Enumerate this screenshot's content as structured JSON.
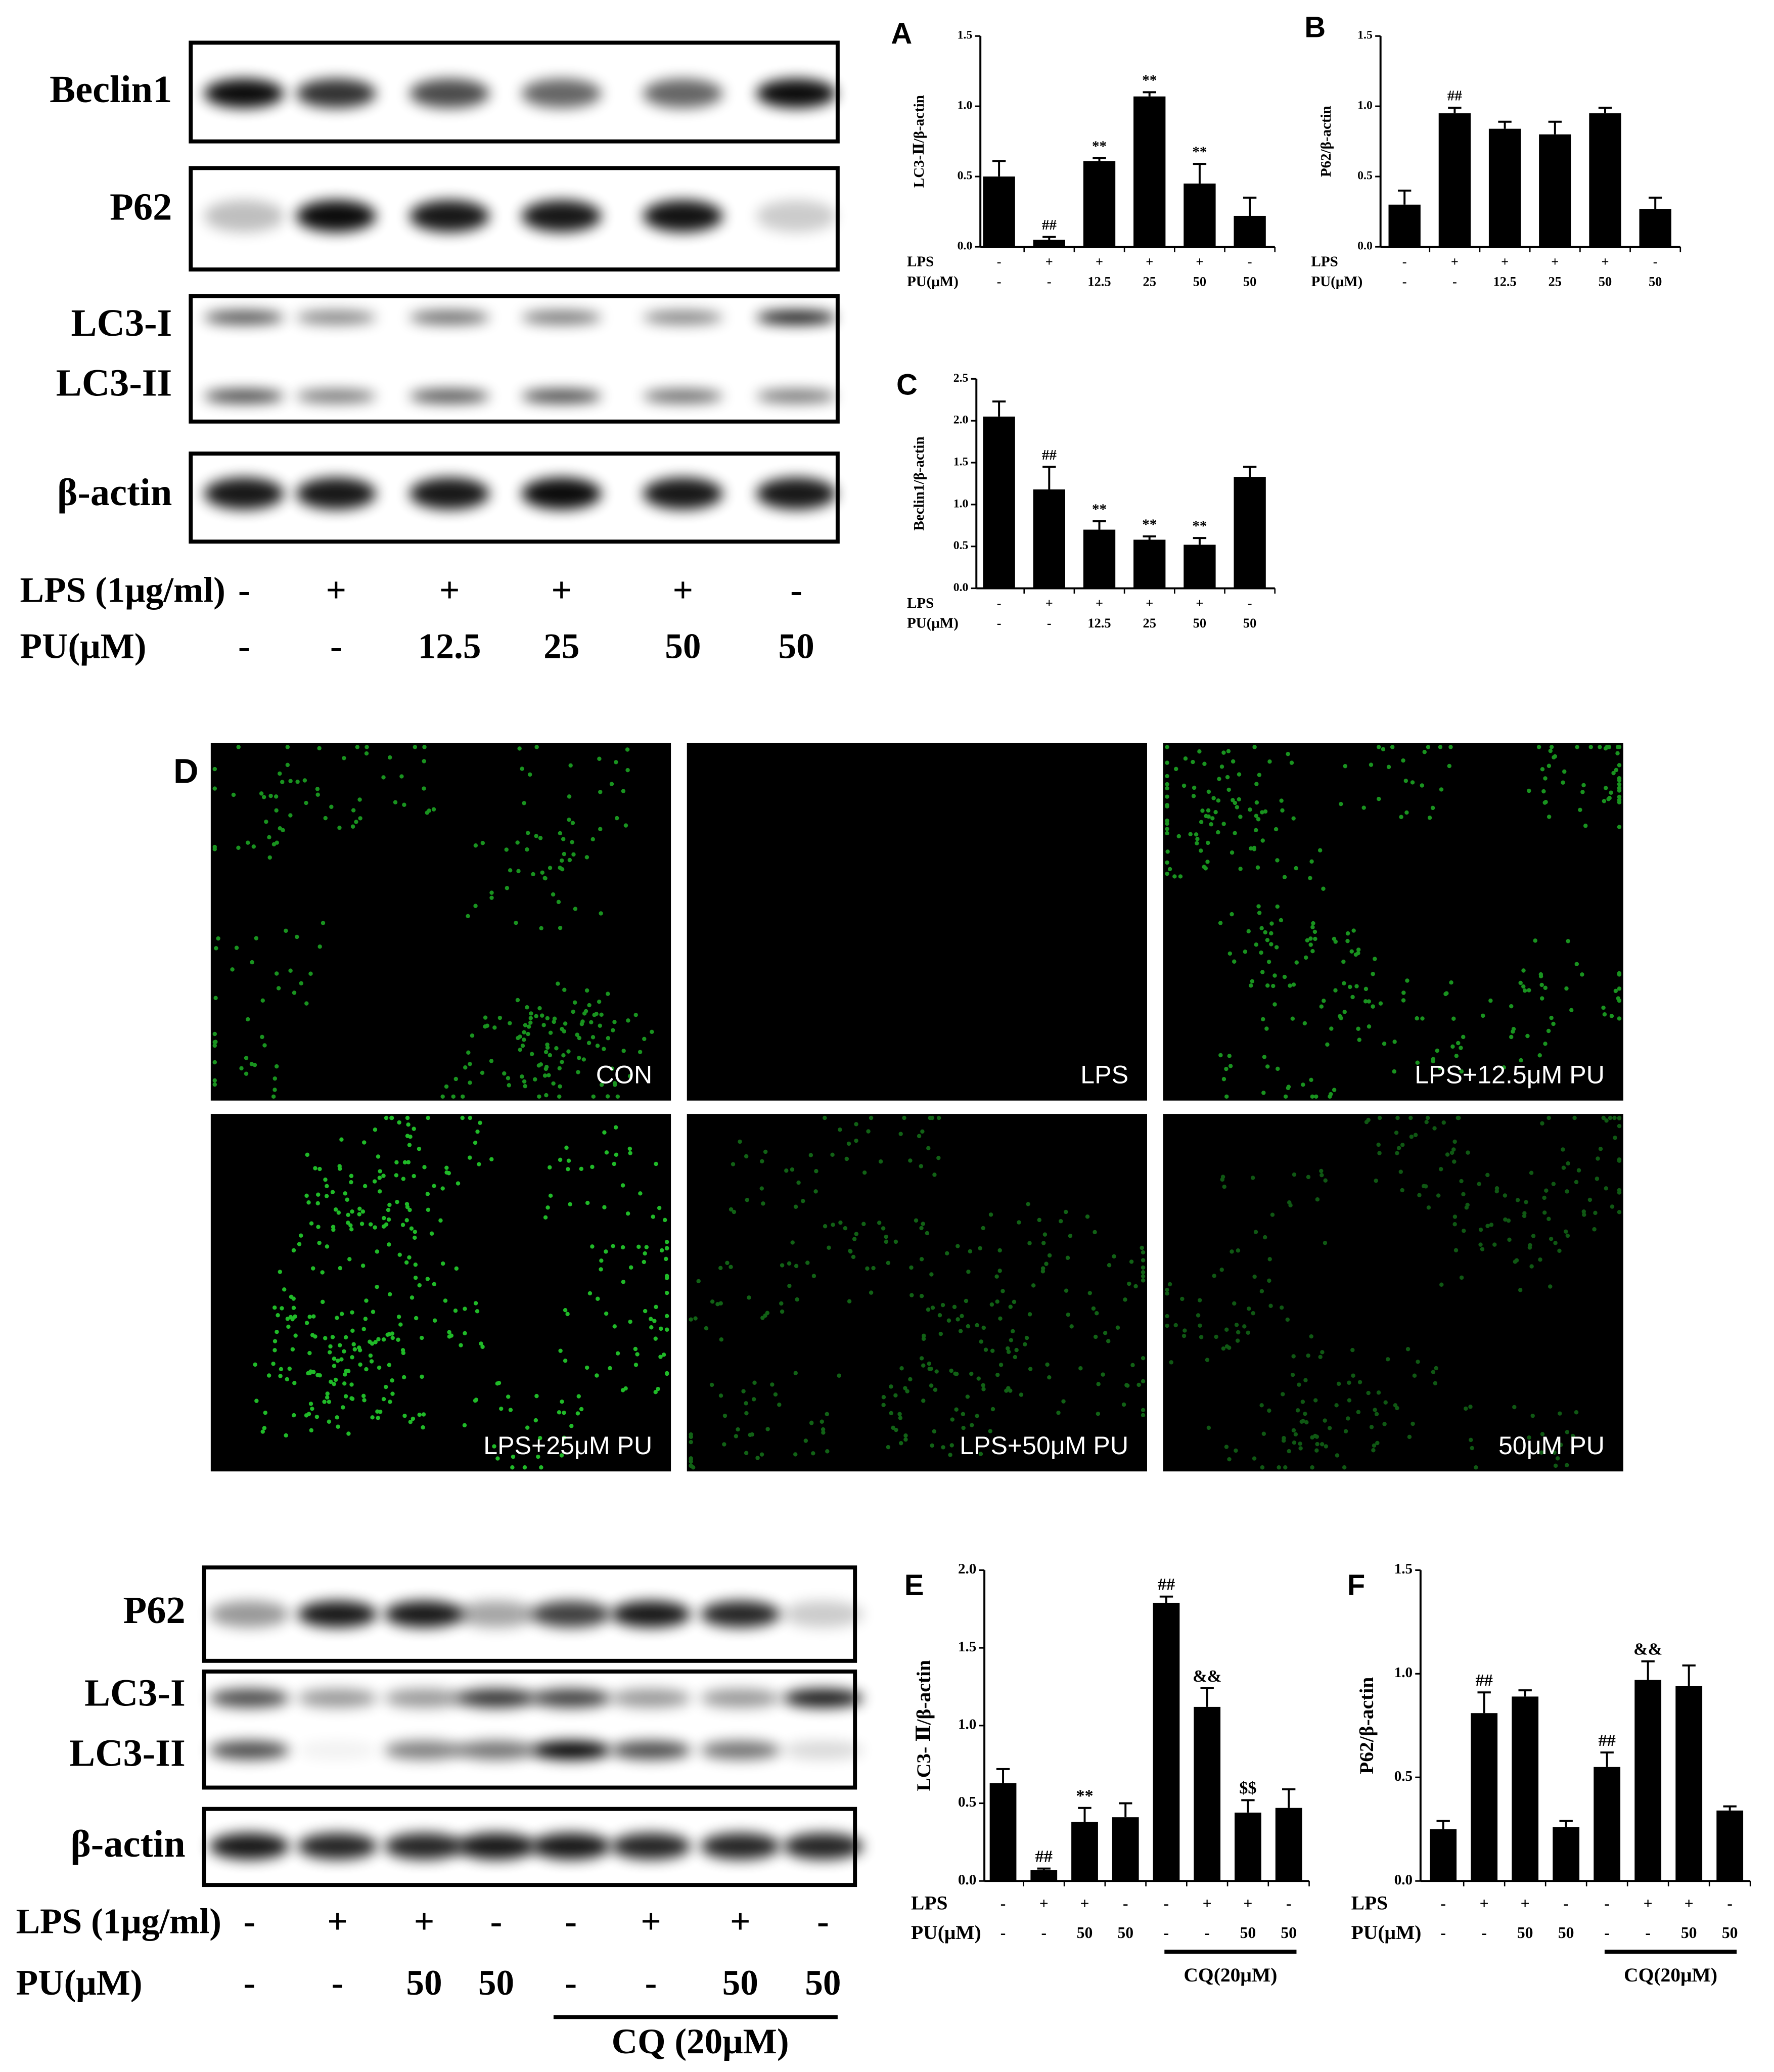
{
  "western_blot_top": {
    "bands": [
      "Beclin1",
      "P62",
      "LC3-I",
      "LC3-II",
      "β-actin"
    ],
    "treatments": [
      {
        "name": "LPS (1μg/ml)",
        "values": [
          "-",
          "+",
          "+",
          "+",
          "+",
          "-"
        ]
      },
      {
        "name": "PU(μM)",
        "values": [
          "-",
          "-",
          "12.5",
          "25",
          "50",
          "50"
        ]
      }
    ]
  },
  "fluorescence": {
    "label": "D",
    "panels": [
      "CON",
      "LPS",
      "LPS+12.5μM PU",
      "LPS+25μM PU",
      "LPS+50μM PU",
      "50μM PU"
    ]
  },
  "western_blot_bottom": {
    "bands": [
      "P62",
      "LC3-I",
      "LC3-II",
      "β-actin"
    ],
    "treatments": [
      {
        "name": "LPS (1μg/ml)",
        "values": [
          "-",
          "+",
          "+",
          "-",
          "-",
          "+",
          "+",
          "-"
        ]
      },
      {
        "name": "PU(μM)",
        "values": [
          "-",
          "-",
          "50",
          "50",
          "-",
          "-",
          "50",
          "50"
        ]
      }
    ],
    "group_label": "CQ (20μM)"
  },
  "chart_data": [
    {
      "type": "bar",
      "label": "A",
      "y_label": "LC3-Ⅱ/β-actin",
      "color": "#000000",
      "values": [
        0.5,
        0.05,
        0.61,
        1.07,
        0.45,
        0.22
      ],
      "errors": [
        0.11,
        0.02,
        0.02,
        0.03,
        0.14,
        0.13
      ],
      "annotations": [
        null,
        "##",
        "**",
        "**",
        "**",
        null
      ],
      "treatments": [
        {
          "name": "LPS",
          "values": [
            "-",
            "+",
            "+",
            "+",
            "+",
            "-"
          ]
        },
        {
          "name": "PU(μM)",
          "values": [
            "-",
            "-",
            "12.5",
            "25",
            "50",
            "50"
          ]
        }
      ],
      "ylim": [
        0,
        1.5
      ],
      "yticks": [
        {
          "value": 0,
          "label": "0.0"
        },
        0.5,
        {
          "value": 1,
          "label": "1.0"
        },
        1.5
      ]
    },
    {
      "type": "bar",
      "label": "B",
      "y_label": "P62/β-actin",
      "color": "#000000",
      "values": [
        0.3,
        0.95,
        0.84,
        0.8,
        0.95,
        0.27
      ],
      "errors": [
        0.1,
        0.04,
        0.05,
        0.09,
        0.04,
        0.08
      ],
      "annotations": [
        null,
        "##",
        null,
        null,
        null,
        null
      ],
      "treatments": [
        {
          "name": "LPS",
          "values": [
            "-",
            "+",
            "+",
            "+",
            "+",
            "-"
          ]
        },
        {
          "name": "PU(μM)",
          "values": [
            "-",
            "-",
            "12.5",
            "25",
            "50",
            "50"
          ]
        }
      ],
      "ylim": [
        0,
        1.5
      ],
      "yticks": [
        {
          "value": 0,
          "label": "0.0"
        },
        0.5,
        {
          "value": 1,
          "label": "1.0"
        },
        1.5
      ]
    },
    {
      "type": "bar",
      "label": "C",
      "y_label": "Beclin1/β-actin",
      "color": "#000000",
      "values": [
        2.05,
        1.18,
        0.7,
        0.58,
        0.52,
        1.33
      ],
      "errors": [
        0.18,
        0.27,
        0.1,
        0.04,
        0.08,
        0.12
      ],
      "annotations": [
        null,
        "##",
        "**",
        "**",
        "**",
        null
      ],
      "treatments": [
        {
          "name": "LPS",
          "values": [
            "-",
            "+",
            "+",
            "+",
            "+",
            "-"
          ]
        },
        {
          "name": "PU(μM)",
          "values": [
            "-",
            "-",
            "12.5",
            "25",
            "50",
            "50"
          ]
        }
      ],
      "ylim": [
        0,
        2.5
      ],
      "yticks": [
        {
          "value": 0,
          "label": "0.0"
        },
        0.5,
        {
          "value": 1,
          "label": "1.0"
        },
        1.5,
        {
          "value": 2,
          "label": "2.0"
        },
        2.5
      ]
    },
    {
      "type": "bar",
      "label": "E",
      "y_label": "LC3- Ⅱ/β-actin",
      "color": "#000000",
      "values": [
        0.63,
        0.07,
        0.38,
        0.41,
        1.79,
        1.12,
        0.44,
        0.47
      ],
      "errors": [
        0.09,
        0.01,
        0.09,
        0.09,
        0.04,
        0.12,
        0.08,
        0.12
      ],
      "annotations": [
        null,
        "##",
        "**",
        null,
        "##",
        "&&",
        "$$",
        null
      ],
      "treatments": [
        {
          "name": "LPS",
          "values": [
            "-",
            "+",
            "+",
            "-",
            "-",
            "+",
            "+",
            "-"
          ]
        },
        {
          "name": "PU(μM)",
          "values": [
            "-",
            "-",
            "50",
            "50",
            "-",
            "-",
            "50",
            "50"
          ]
        }
      ],
      "group_label": "CQ(20μM)",
      "ylim": [
        0,
        2
      ],
      "yticks": [
        {
          "value": 0,
          "label": "0.0"
        },
        0.5,
        {
          "value": 1,
          "label": "1.0"
        },
        1.5,
        {
          "value": 2,
          "label": "2.0"
        }
      ]
    },
    {
      "type": "bar",
      "label": "F",
      "y_label": "P62/β-actin",
      "color": "#000000",
      "values": [
        0.25,
        0.81,
        0.89,
        0.26,
        0.55,
        0.97,
        0.94,
        0.34
      ],
      "errors": [
        0.04,
        0.1,
        0.03,
        0.03,
        0.07,
        0.09,
        0.1,
        0.02
      ],
      "annotations": [
        null,
        "##",
        null,
        null,
        "##",
        "&&",
        null,
        null
      ],
      "treatments": [
        {
          "name": "LPS",
          "values": [
            "-",
            "+",
            "+",
            "-",
            "-",
            "+",
            "+",
            "-"
          ]
        },
        {
          "name": "PU(μM)",
          "values": [
            "-",
            "-",
            "50",
            "50",
            "-",
            "-",
            "50",
            "50"
          ]
        }
      ],
      "group_label": "CQ(20μM)",
      "ylim": [
        0,
        1.5
      ],
      "yticks": [
        {
          "value": 0,
          "label": "0.0"
        },
        0.5,
        {
          "value": 1,
          "label": "1.0"
        },
        1.5
      ]
    }
  ]
}
